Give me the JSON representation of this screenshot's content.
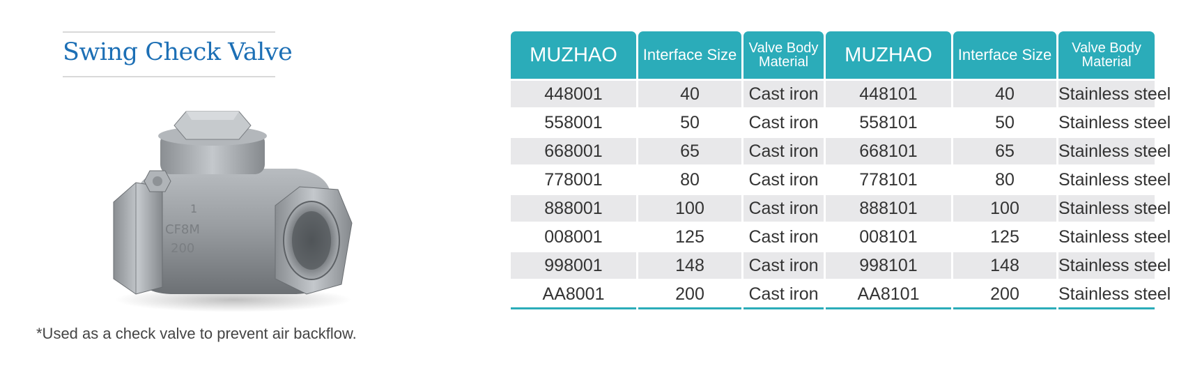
{
  "title": "Swing Check Valve",
  "footnote": "*Used as a check valve to prevent air backflow.",
  "colors": {
    "accent": "#2bacb9",
    "title": "#1c6fb5"
  },
  "image": {
    "icon": "swing-check-valve-image",
    "markings": [
      "1",
      "CF8M",
      "200"
    ]
  },
  "table": {
    "headers": [
      "MUZHAO",
      "Interface Size",
      "Valve Body Material",
      "MUZHAO",
      "Interface Size",
      "Valve Body Material"
    ],
    "rows": [
      [
        "448001",
        "40",
        "Cast iron",
        "448101",
        "40",
        "Stainless steel"
      ],
      [
        "558001",
        "50",
        "Cast iron",
        "558101",
        "50",
        "Stainless steel"
      ],
      [
        "668001",
        "65",
        "Cast iron",
        "668101",
        "65",
        "Stainless steel"
      ],
      [
        "778001",
        "80",
        "Cast iron",
        "778101",
        "80",
        "Stainless steel"
      ],
      [
        "888001",
        "100",
        "Cast iron",
        "888101",
        "100",
        "Stainless steel"
      ],
      [
        "008001",
        "125",
        "Cast iron",
        "008101",
        "125",
        "Stainless steel"
      ],
      [
        "998001",
        "148",
        "Cast iron",
        "998101",
        "148",
        "Stainless steel"
      ],
      [
        "AA8001",
        "200",
        "Cast iron",
        "AA8101",
        "200",
        "Stainless steel"
      ]
    ]
  }
}
